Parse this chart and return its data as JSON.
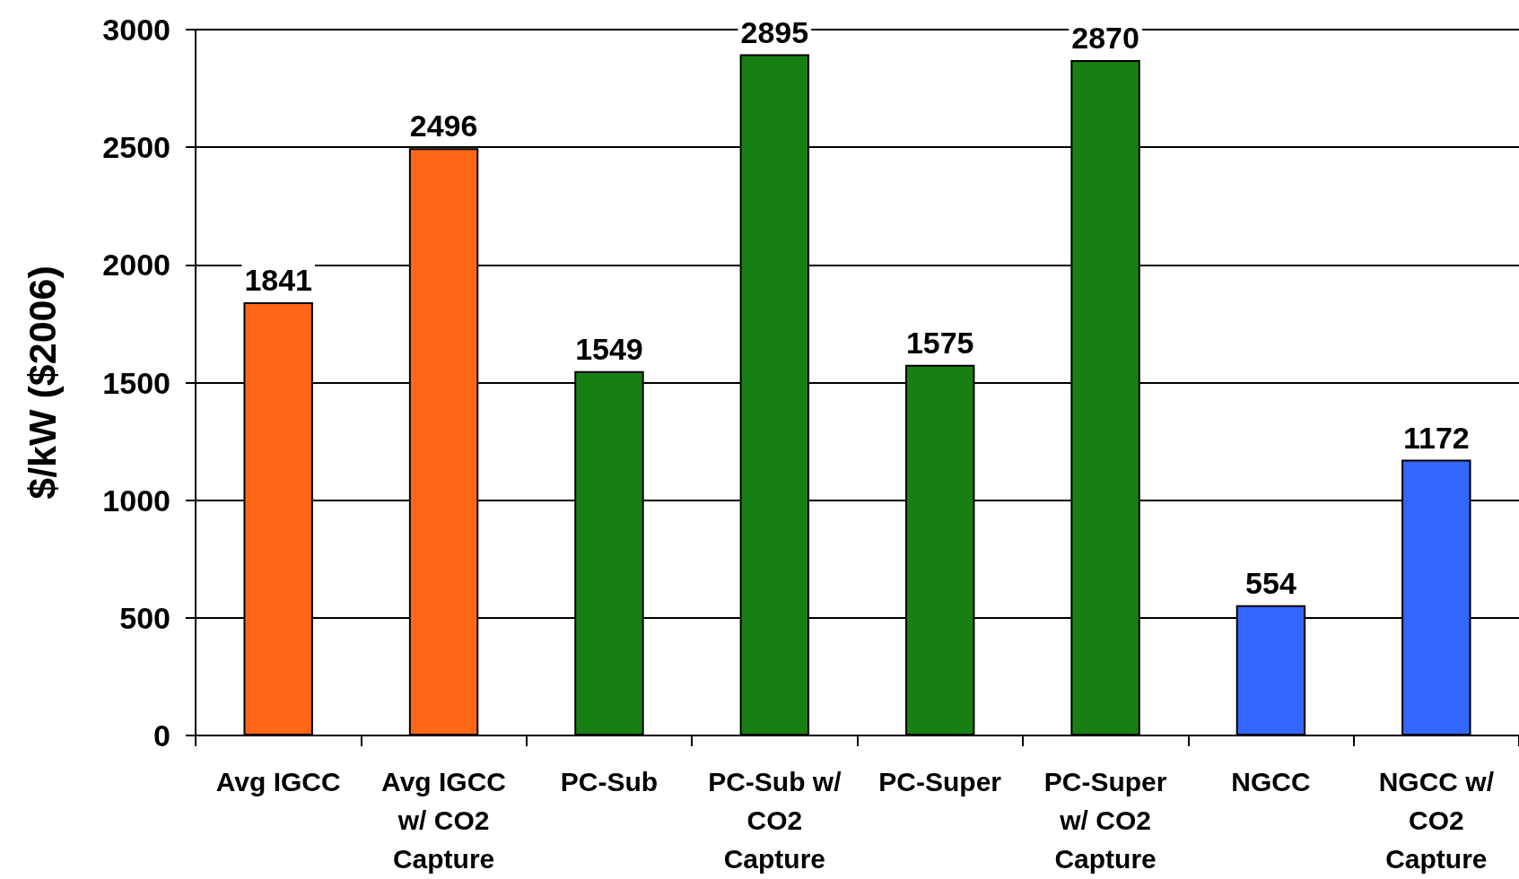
{
  "chart_data": {
    "type": "bar",
    "ylabel": "$/kW ($2006)",
    "categories": [
      "Avg IGCC",
      "Avg IGCC w/ CO2 Capture",
      "PC-Sub",
      "PC-Sub w/ CO2 Capture",
      "PC-Super",
      "PC-Super w/ CO2 Capture",
      "NGCC",
      "NGCC w/ CO2 Capture"
    ],
    "values": [
      1841,
      2496,
      1549,
      2895,
      1575,
      2870,
      554,
      1172
    ],
    "colors": [
      "#ff6615",
      "#ff6615",
      "#187f15",
      "#187f15",
      "#187f15",
      "#187f15",
      "#3366ff",
      "#3366ff"
    ],
    "ylim": [
      0,
      3000
    ],
    "yticks": [
      0,
      500,
      1000,
      1500,
      2000,
      2500,
      3000
    ],
    "grid": "y",
    "data_labels": true
  }
}
